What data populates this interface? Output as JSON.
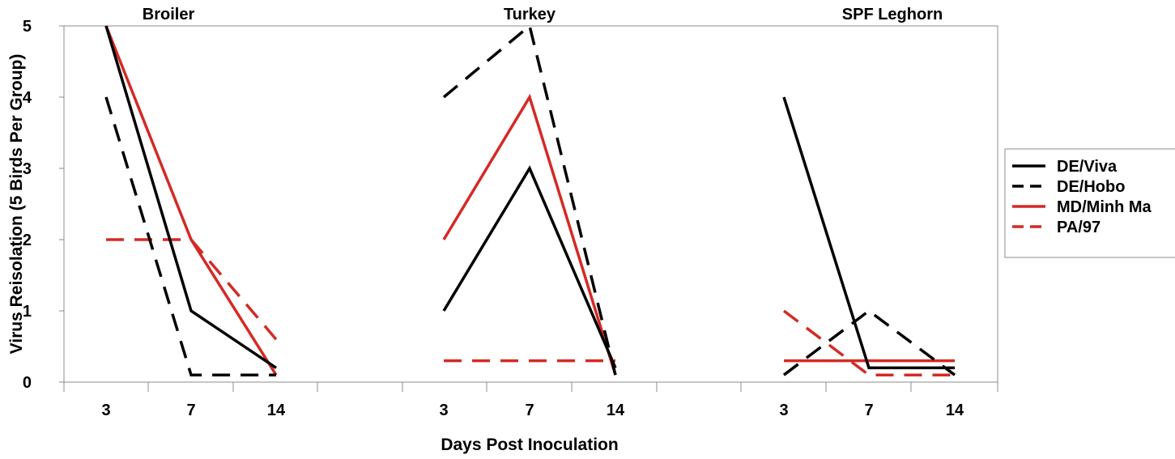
{
  "chart_data": {
    "type": "line",
    "title": "",
    "xlabel": "Days Post Inoculation",
    "ylabel": "Virus Reisolation (5 Birds Per Group)",
    "ylim": [
      0,
      5
    ],
    "yticks": [
      "0",
      "1",
      "2",
      "3",
      "4",
      "5"
    ],
    "grid": false,
    "legend_position": "right",
    "panels": [
      {
        "title": "Broiler",
        "categories": [
          "3",
          "7",
          "14"
        ],
        "series": {
          "de_viva": [
            5,
            1,
            0.2
          ],
          "de_hobo": [
            4,
            0.1,
            0.1
          ],
          "md_minh": [
            5,
            2,
            0.1
          ],
          "pa_97": [
            2,
            2,
            0.6
          ]
        }
      },
      {
        "title": "Turkey",
        "categories": [
          "3",
          "7",
          "14"
        ],
        "series": {
          "de_viva": [
            1,
            3,
            0.2
          ],
          "de_hobo": [
            4,
            5,
            0.1
          ],
          "md_minh": [
            2,
            4,
            0.1
          ],
          "pa_97": [
            0.3,
            0.3,
            0.3
          ]
        }
      },
      {
        "title": "SPF Leghorn",
        "categories": [
          "3",
          "7",
          "14"
        ],
        "series": {
          "de_viva": [
            4,
            0.2,
            0.2
          ],
          "de_hobo": [
            0.1,
            1,
            0.1
          ],
          "md_minh": [
            0.3,
            0.3,
            0.3
          ],
          "pa_97": [
            1,
            0.1,
            0.1
          ]
        }
      }
    ],
    "legend": [
      {
        "key": "de_viva",
        "name": "DE/Viva",
        "color": "#000000",
        "dashed": false
      },
      {
        "key": "de_hobo",
        "name": "DE/Hobo",
        "color": "#000000",
        "dashed": true
      },
      {
        "key": "md_minh",
        "name": "MD/Minh Ma",
        "color": "#d42a25",
        "dashed": false
      },
      {
        "key": "pa_97",
        "name": "PA/97",
        "color": "#d42a25",
        "dashed": true
      }
    ]
  }
}
